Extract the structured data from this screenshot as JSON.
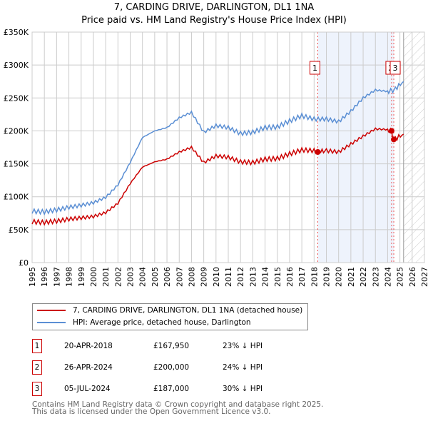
{
  "title": "7, CARDING DRIVE, DARLINGTON, DL1 1NA",
  "subtitle": "Price paid vs. HM Land Registry's House Price Index (HPI)",
  "chart_data": {
    "type": "line",
    "ylim": [
      0,
      350000
    ],
    "xlim": [
      1995,
      2027
    ],
    "y_ticks": [
      {
        "v": 0,
        "label": "£0"
      },
      {
        "v": 50000,
        "label": "£50K"
      },
      {
        "v": 100000,
        "label": "£100K"
      },
      {
        "v": 150000,
        "label": "£150K"
      },
      {
        "v": 200000,
        "label": "£200K"
      },
      {
        "v": 250000,
        "label": "£250K"
      },
      {
        "v": 300000,
        "label": "£300K"
      },
      {
        "v": 350000,
        "label": "£350K"
      }
    ],
    "x_ticks": [
      "1995",
      "1996",
      "1997",
      "1998",
      "1999",
      "2000",
      "2001",
      "2002",
      "2003",
      "2004",
      "2005",
      "2006",
      "2007",
      "2008",
      "2009",
      "2010",
      "2011",
      "2012",
      "2013",
      "2014",
      "2015",
      "2016",
      "2017",
      "2018",
      "2019",
      "2020",
      "2021",
      "2022",
      "2023",
      "2024",
      "2025",
      "2026",
      "2027"
    ],
    "grid": true,
    "series": [
      {
        "name": "7, CARDING DRIVE, DARLINGTON, DL1 1NA (detached house)",
        "color": "#cc0000",
        "x": [
          1995,
          1996,
          1997,
          1998,
          1999,
          2000,
          2001,
          2002,
          2003,
          2004,
          2005,
          2006,
          2007,
          2008,
          2009,
          2010,
          2011,
          2012,
          2013,
          2014,
          2015,
          2016,
          2017,
          2018,
          2018.3,
          2019,
          2020,
          2021,
          2022,
          2023,
          2024,
          2024.3,
          2024.5,
          2025.3
        ],
        "y": [
          62000,
          61000,
          63000,
          66000,
          68000,
          70000,
          76000,
          90000,
          120000,
          145000,
          153000,
          157000,
          168000,
          175000,
          152000,
          162000,
          160000,
          153000,
          152000,
          157000,
          158000,
          165000,
          171000,
          170000,
          167950,
          170000,
          168000,
          180000,
          192000,
          203000,
          202000,
          200000,
          187000,
          195000
        ]
      },
      {
        "name": "HPI: Average price, detached house, Darlington",
        "color": "#5b8fd4",
        "x": [
          1995,
          1996,
          1997,
          1998,
          1999,
          2000,
          2001,
          2002,
          2003,
          2004,
          2005,
          2006,
          2007,
          2008,
          2009,
          2010,
          2011,
          2012,
          2013,
          2014,
          2015,
          2016,
          2017,
          2018,
          2019,
          2020,
          2021,
          2022,
          2023,
          2024,
          2024.5,
          2025.3
        ],
        "y": [
          78000,
          77000,
          80000,
          84000,
          87000,
          91000,
          99000,
          118000,
          152000,
          190000,
          200000,
          205000,
          220000,
          228000,
          198000,
          208000,
          205000,
          196000,
          198000,
          205000,
          206000,
          215000,
          223000,
          218000,
          218000,
          214000,
          230000,
          250000,
          262000,
          260000,
          262000,
          275000
        ]
      }
    ],
    "annotations": [
      {
        "label": "1",
        "x": 2018.3,
        "y": 167950
      },
      {
        "label": "2",
        "x": 2024.32,
        "y": 200000
      },
      {
        "label": "3",
        "x": 2024.5,
        "y": 187000
      }
    ],
    "shaded_region": [
      2018.3,
      2024.5
    ],
    "forecast_hatch_from": 2025.3
  },
  "legend": {
    "property": "7, CARDING DRIVE, DARLINGTON, DL1 1NA (detached house)",
    "hpi": "HPI: Average price, detached house, Darlington"
  },
  "transactions": [
    {
      "n": "1",
      "date": "20-APR-2018",
      "price": "£167,950",
      "diff": "23% ↓ HPI"
    },
    {
      "n": "2",
      "date": "26-APR-2024",
      "price": "£200,000",
      "diff": "24% ↓ HPI"
    },
    {
      "n": "3",
      "date": "05-JUL-2024",
      "price": "£187,000",
      "diff": "30% ↓ HPI"
    }
  ],
  "footer": [
    "Contains HM Land Registry data © Crown copyright and database right 2025.",
    "This data is licensed under the Open Government Licence v3.0."
  ]
}
